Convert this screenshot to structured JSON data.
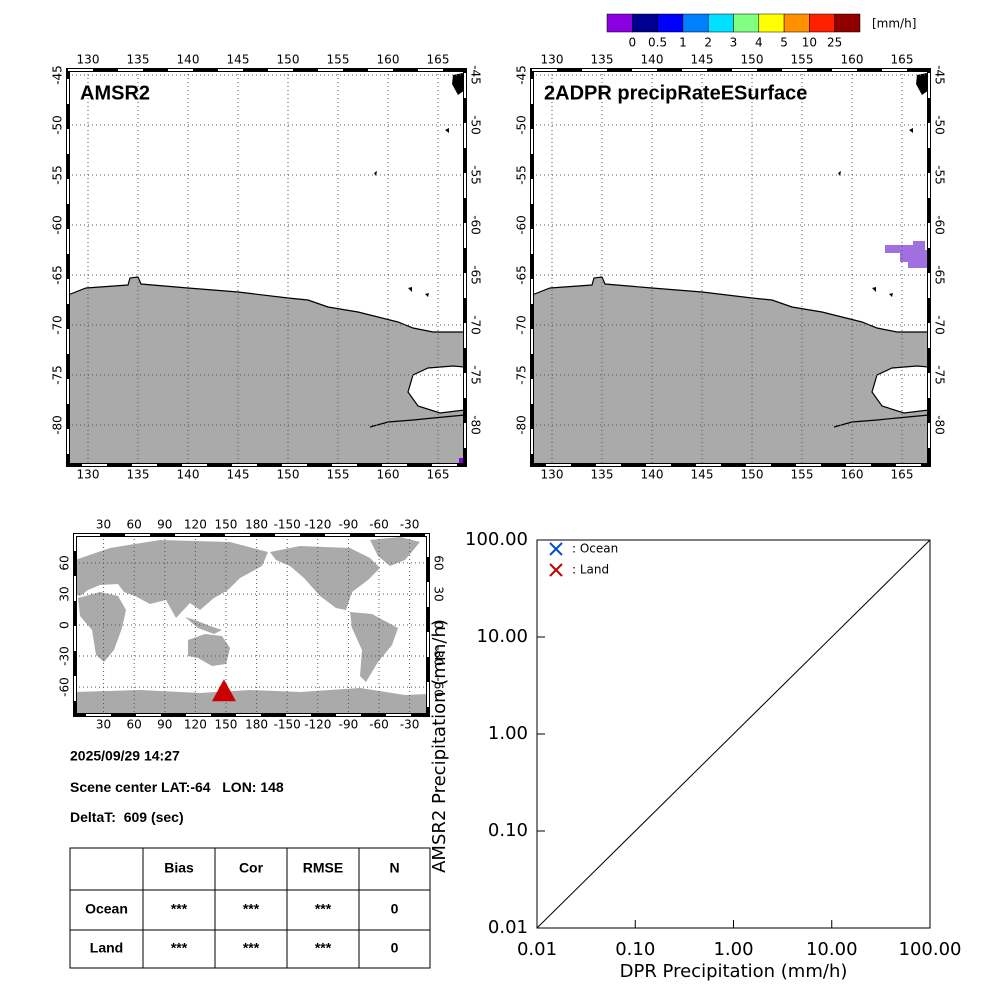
{
  "colorbar": {
    "colors": [
      "#8a00e0",
      "#000090",
      "#0000ff",
      "#0080ff",
      "#00e0ff",
      "#80ff80",
      "#ffff00",
      "#ff9000",
      "#ff2000",
      "#900000"
    ],
    "labels": [
      0,
      0.5,
      1,
      2,
      3,
      4,
      5,
      10,
      25
    ],
    "unit": "[mm/h]"
  },
  "maps": [
    {
      "title": "AMSR2",
      "xlim": [
        128,
        167.7
      ],
      "ylim": [
        -84,
        -44.5
      ],
      "xticks": [
        130,
        135,
        140,
        145,
        150,
        155,
        160,
        165
      ],
      "yticks": [
        -45,
        -50,
        -55,
        -60,
        -65,
        -70,
        -75,
        -80
      ],
      "land_color": "#aaaaaa"
    },
    {
      "title": "2ADPR precipRateESurface",
      "xlim": [
        128,
        167.7
      ],
      "ylim": [
        -84,
        -44.5
      ],
      "xticks": [
        130,
        135,
        140,
        145,
        150,
        155,
        160,
        165
      ],
      "yticks": [
        -45,
        -50,
        -55,
        -60,
        -65,
        -70,
        -75,
        -80
      ],
      "land_color": "#aaaaaa"
    }
  ],
  "locator_map": {
    "xlim": [
      2,
      348
    ],
    "ylim": [
      -87,
      87
    ],
    "xticks": [
      30,
      60,
      90,
      120,
      150,
      180,
      {
        "value": 210,
        "label": "-150"
      },
      {
        "value": 240,
        "label": "-120"
      },
      {
        "value": 270,
        "label": "-90"
      },
      {
        "value": 300,
        "label": "-60"
      },
      {
        "value": 330,
        "label": "-30"
      }
    ],
    "yticks": [
      60,
      30,
      0,
      -30,
      -60
    ],
    "marker_color": "#cc0000",
    "land_color": "#aaaaaa"
  },
  "info": {
    "datetime": "2025/09/29 14:27",
    "scene": {
      "lat_label": "Scene center LAT:",
      "lat": -64,
      "lon_label": "LON:",
      "lon": 148
    },
    "delta": {
      "label": "DeltaT:",
      "value": 609,
      "unit": "(sec)"
    }
  },
  "table": {
    "header": [
      "Bias",
      "Cor",
      "RMSE",
      "N"
    ],
    "rows": [
      {
        "label": "Ocean",
        "cells": [
          "***",
          "***",
          "***",
          0
        ]
      },
      {
        "label": "Land",
        "cells": [
          "***",
          "***",
          "***",
          0
        ]
      }
    ]
  },
  "chart_data": {
    "type": "scatter",
    "xlabel": "DPR Precipitation (mm/h)",
    "ylabel": "AMSR2 Precipitation (mm/h)",
    "log_x": true,
    "log_y": true,
    "xlim": [
      0.01,
      100
    ],
    "ylim": [
      0.01,
      100
    ],
    "xticks": [
      0.01,
      {
        "value": 0.1,
        "label": "0.10"
      },
      {
        "value": 1,
        "label": "1.00"
      },
      {
        "value": 10,
        "label": "10.00"
      },
      {
        "value": 100,
        "label": "100.00"
      }
    ],
    "yticks": [
      0.01,
      {
        "value": 0.1,
        "label": "0.10"
      },
      {
        "value": 1,
        "label": "1.00"
      },
      {
        "value": 10,
        "label": "10.00"
      },
      {
        "value": 100,
        "label": "100.00"
      }
    ],
    "series": [
      {
        "name": ": Ocean",
        "color": "#0050d0",
        "x": [],
        "y": []
      },
      {
        "name": ": Land",
        "color": "#c00000",
        "x": [],
        "y": []
      }
    ]
  }
}
